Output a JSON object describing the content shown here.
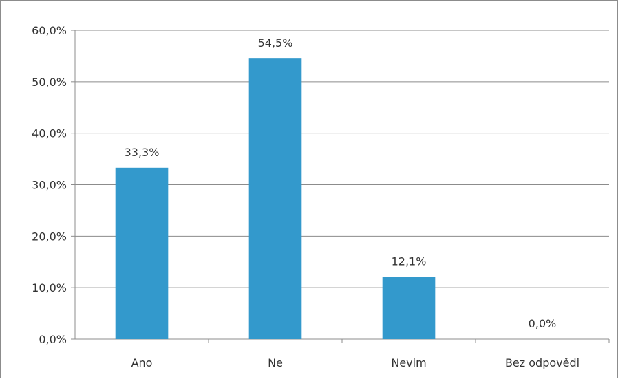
{
  "chart_data": {
    "type": "bar",
    "title": "",
    "xlabel": "",
    "ylabel": "",
    "categories": [
      "Ano",
      "Ne",
      "Nevim",
      "Bez odpovědi"
    ],
    "values": [
      33.3,
      54.5,
      12.1,
      0.0
    ],
    "data_labels": [
      "33,3%",
      "54,5%",
      "12,1%",
      "0,0%"
    ],
    "ylim": [
      0,
      60
    ],
    "y_ticks": [
      0,
      10,
      20,
      30,
      40,
      50,
      60
    ],
    "y_tick_labels": [
      "0,0%",
      "10,0%",
      "20,0%",
      "30,0%",
      "40,0%",
      "50,0%",
      "60,0%"
    ],
    "grid": true,
    "legend": "none",
    "bar_color": "#3399cc",
    "gridline_color": "#8c8c8c"
  }
}
